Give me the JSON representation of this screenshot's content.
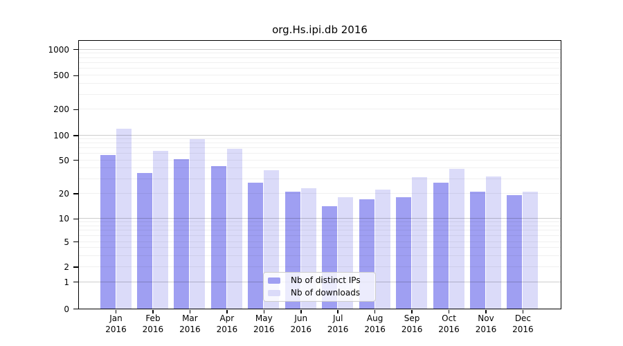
{
  "chart_data": {
    "type": "bar",
    "title": "org.Hs.ipi.db 2016",
    "categories": [
      "Jan 2016",
      "Feb 2016",
      "Mar 2016",
      "Apr 2016",
      "May 2016",
      "Jun 2016",
      "Jul 2016",
      "Aug 2016",
      "Sep 2016",
      "Oct 2016",
      "Nov 2016",
      "Dec 2016"
    ],
    "x_tick_months": [
      "Jan",
      "Feb",
      "Mar",
      "Apr",
      "May",
      "Jun",
      "Jul",
      "Aug",
      "Sep",
      "Oct",
      "Nov",
      "Dec"
    ],
    "x_tick_year": "2016",
    "series": [
      {
        "name": "Nb of distinct IPs",
        "color": "#9f9ff2",
        "values": [
          57,
          35,
          51,
          42,
          27,
          21,
          14,
          17,
          18,
          27,
          21,
          19
        ]
      },
      {
        "name": "Nb of downloads",
        "color": "#dbdbf9",
        "values": [
          118,
          65,
          90,
          68,
          38,
          23,
          18,
          22,
          31,
          39,
          32,
          21
        ]
      }
    ],
    "y_ticks": [
      0,
      1,
      2,
      5,
      10,
      20,
      50,
      100,
      200,
      500,
      1000
    ],
    "y_tick_labels": [
      "0",
      "1",
      "2",
      "5",
      "10",
      "20",
      "50",
      "100",
      "200",
      "500",
      "1000"
    ],
    "ylabel": "",
    "xlabel": "",
    "ylim": [
      0,
      1000
    ],
    "y_scale": "log-like (0,1,2,5,10,20,50,100,200,500,1000)",
    "grid": true,
    "legend_position": "inside-bottom-center",
    "colors": {
      "axis": "#000000",
      "text": "#000000",
      "major_grid": "#cccccc",
      "minor_grid": "#f0f0f0",
      "legend_border": "#cccccc",
      "legend_background": "rgba(255,255,255,0.8)"
    }
  }
}
